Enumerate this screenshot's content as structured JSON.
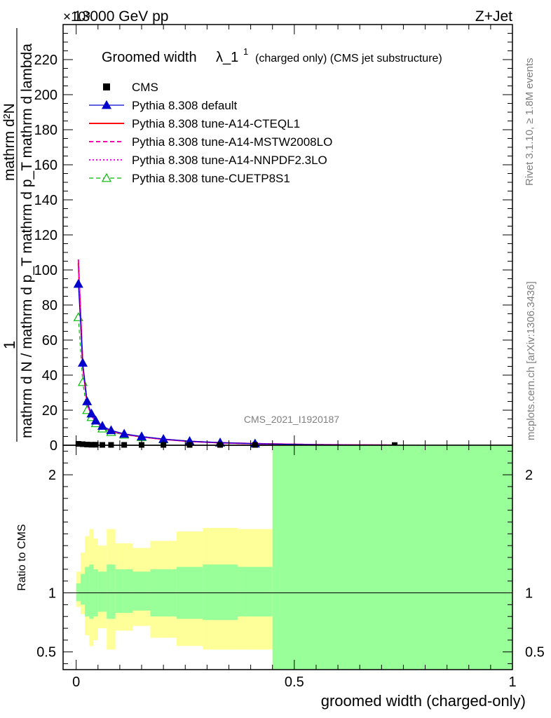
{
  "header": {
    "left": "13000 GeV pp",
    "right": "Z+Jet",
    "exponent": "×10³"
  },
  "side_labels": {
    "rivet": "Rivet 3.1.10, ≥ 1.8M events",
    "mcplots": "mcplots.cern.ch [arXiv:1306.3436]"
  },
  "watermark": "CMS_2021_I1920187",
  "main_title": {
    "text": "Groomed width",
    "symbol": "λ_1",
    "sup": "1",
    "note": "(charged only) (CMS jet substructure)"
  },
  "y_label_top": {
    "numerator": "1",
    "denominator": "mathrm d N / mathrm d p_T mathrm d p_T mathrm d lambda",
    "right": "mathrm d²N"
  },
  "ratio_ylabel": "Ratio to CMS",
  "xlabel": "groomed width (charged-only)",
  "legend": [
    {
      "label": "CMS",
      "color": "#000000",
      "style": "square"
    },
    {
      "label": "Pythia 8.308 default",
      "color": "#0000cc",
      "style": "line-triangle"
    },
    {
      "label": "Pythia 8.308 tune-A14-CTEQL1",
      "color": "#ff0000",
      "style": "line"
    },
    {
      "label": "Pythia 8.308 tune-A14-MSTW2008LO",
      "color": "#ff00aa",
      "style": "dashed"
    },
    {
      "label": "Pythia 8.308 tune-A14-NNPDF2.3LO",
      "color": "#ff00ff",
      "style": "dotted"
    },
    {
      "label": "Pythia 8.308 tune-CUETP8S1",
      "color": "#00bb00",
      "style": "dashed-open-triangle"
    }
  ],
  "chart_data": {
    "type": "line",
    "xlim": [
      -0.03,
      1.0
    ],
    "ylim_top": [
      0,
      240
    ],
    "yticks_top": [
      0,
      20,
      40,
      60,
      80,
      100,
      120,
      140,
      160,
      180,
      200,
      220
    ],
    "ylim_ratio": [
      0.35,
      2.25
    ],
    "yticks_ratio": [
      0.5,
      1,
      2
    ],
    "xticks": [
      0,
      0.5,
      1
    ],
    "cms": {
      "x": [
        0.005,
        0.015,
        0.025,
        0.035,
        0.045,
        0.06,
        0.08,
        0.11,
        0.15,
        0.2,
        0.26,
        0.33,
        0.41,
        0.73
      ],
      "y": [
        0.8,
        0.6,
        0.4,
        0.3,
        0.3,
        0.2,
        0.2,
        0.2,
        0.2,
        0.2,
        0.2,
        0.2,
        0.2,
        0.1
      ]
    },
    "series": [
      {
        "name": "Pythia 8.308 default",
        "color": "#0000cc",
        "x": [
          0.005,
          0.015,
          0.025,
          0.035,
          0.045,
          0.06,
          0.08,
          0.11,
          0.15,
          0.2,
          0.26,
          0.33,
          0.41,
          0.55,
          0.73
        ],
        "y": [
          92,
          47,
          25,
          18,
          14,
          11,
          8.5,
          6.5,
          5,
          3.5,
          2.3,
          1.5,
          0.9,
          0.3,
          0.05
        ]
      },
      {
        "name": "Pythia 8.308 tune-A14-CTEQL1",
        "color": "#ff0000",
        "x": [
          0.005,
          0.015,
          0.025,
          0.035,
          0.045,
          0.06,
          0.08,
          0.11,
          0.15,
          0.2,
          0.26,
          0.33,
          0.41,
          0.55,
          0.73
        ],
        "y": [
          104,
          46,
          24,
          17,
          13.5,
          10.5,
          8.2,
          6.3,
          4.8,
          3.4,
          2.2,
          1.4,
          0.9,
          0.3,
          0.05
        ]
      },
      {
        "name": "Pythia 8.308 tune-A14-MSTW2008LO",
        "color": "#ff00aa",
        "x": [
          0.005,
          0.015,
          0.025,
          0.035,
          0.045,
          0.06,
          0.08,
          0.11,
          0.15,
          0.2,
          0.26,
          0.33,
          0.41,
          0.55,
          0.73
        ],
        "y": [
          106,
          45,
          24,
          17,
          13.5,
          10.5,
          8.2,
          6.3,
          4.8,
          3.4,
          2.2,
          1.4,
          0.9,
          0.3,
          0.05
        ]
      },
      {
        "name": "Pythia 8.308 tune-A14-NNPDF2.3LO",
        "color": "#ff00ff",
        "x": [
          0.005,
          0.015,
          0.025,
          0.035,
          0.045,
          0.06,
          0.08,
          0.11,
          0.15,
          0.2,
          0.26,
          0.33,
          0.41,
          0.55,
          0.73
        ],
        "y": [
          103,
          46,
          24,
          17,
          13.5,
          10.5,
          8.2,
          6.3,
          4.8,
          3.4,
          2.2,
          1.4,
          0.9,
          0.3,
          0.05
        ]
      },
      {
        "name": "Pythia 8.308 tune-CUETP8S1",
        "color": "#00bb00",
        "x": [
          0.005,
          0.015,
          0.025,
          0.035,
          0.045,
          0.06,
          0.08,
          0.11,
          0.15,
          0.2,
          0.26,
          0.33,
          0.41,
          0.55,
          0.73
        ],
        "y": [
          73,
          36,
          20,
          16,
          12.5,
          9.5,
          7.5,
          6,
          4.6,
          3.3,
          2.2,
          1.4,
          0.9,
          0.3,
          0.05
        ]
      }
    ],
    "ratio_bands": {
      "edges": [
        0,
        0.01,
        0.02,
        0.03,
        0.04,
        0.05,
        0.07,
        0.09,
        0.13,
        0.17,
        0.23,
        0.29,
        0.37,
        0.45,
        1.0
      ],
      "yellow_lo": [
        0.88,
        0.82,
        0.64,
        0.55,
        0.6,
        0.7,
        0.52,
        0.68,
        0.72,
        0.62,
        0.55,
        0.52,
        0.52,
        0.35
      ],
      "yellow_hi": [
        1.18,
        1.34,
        1.48,
        1.54,
        1.46,
        1.4,
        1.54,
        1.42,
        1.38,
        1.44,
        1.52,
        1.55,
        1.54,
        2.25
      ],
      "green_lo": [
        0.93,
        0.9,
        0.8,
        0.78,
        0.8,
        0.84,
        0.78,
        0.83,
        0.85,
        0.8,
        0.78,
        0.77,
        0.8,
        0.35
      ],
      "green_hi": [
        1.08,
        1.16,
        1.22,
        1.24,
        1.2,
        1.18,
        1.24,
        1.2,
        1.18,
        1.2,
        1.22,
        1.24,
        1.22,
        2.25
      ]
    }
  }
}
